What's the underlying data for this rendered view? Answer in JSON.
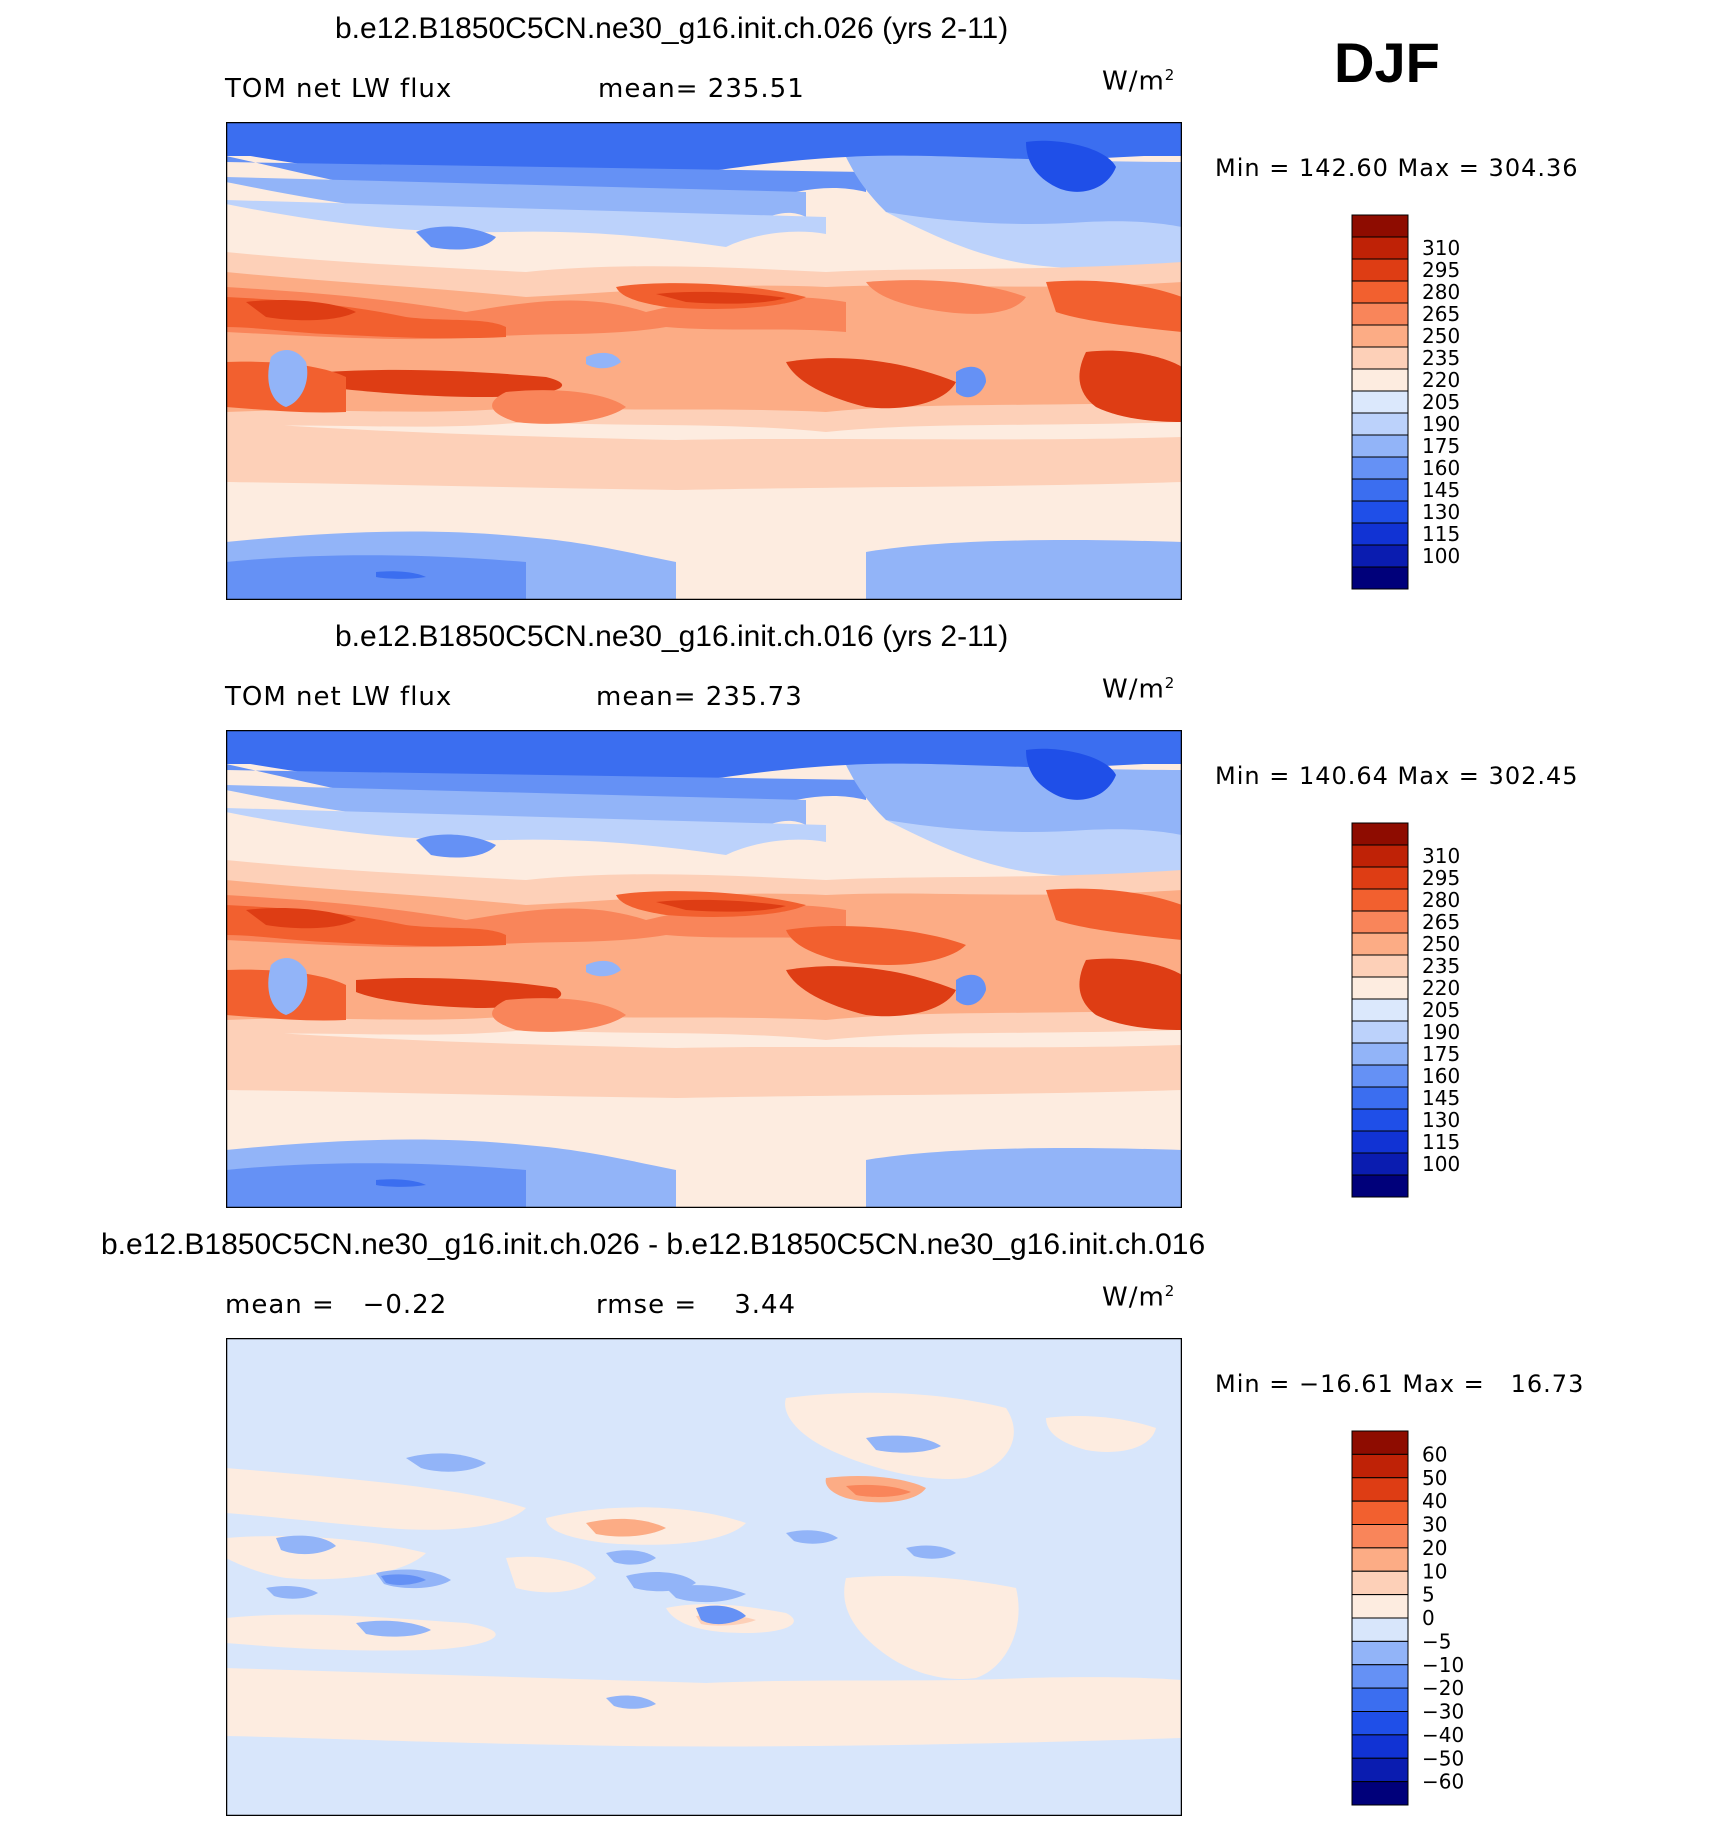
{
  "header": {
    "season": "DJF"
  },
  "colors": {
    "abs_scale": [
      "#00007a",
      "#0a1cb0",
      "#1133d4",
      "#1f4fe8",
      "#3b6ef0",
      "#6591f5",
      "#92b4f8",
      "#bcd2fb",
      "#dbe8fc",
      "#fdece0",
      "#fdd0b8",
      "#fcac85",
      "#f9855a",
      "#f2602f",
      "#de3d14",
      "#bf2206",
      "#8e0c00"
    ],
    "diff_scale": [
      "#00007a",
      "#0a1cb0",
      "#1133d4",
      "#1f4fe8",
      "#3b6ef0",
      "#6591f5",
      "#92b4f8",
      "#d8e6fb",
      "#fdece0",
      "#fdd0b8",
      "#fcac85",
      "#f9855a",
      "#f2602f",
      "#de3d14",
      "#bf2206",
      "#8e0c00"
    ]
  },
  "chart_data": [
    {
      "type": "heatmap",
      "title": "b.e12.B1850C5CN.ne30_g16.init.ch.026 (yrs 2-11)",
      "variable": "TOM net LW flux",
      "mean_label": "mean= 235.51",
      "units": "W/m",
      "units_exp": "2",
      "stats": "Min = 142.60 Max = 304.36",
      "min": 142.6,
      "max": 304.36,
      "mean": 235.51,
      "colorbar_levels": [
        "310",
        "295",
        "280",
        "265",
        "250",
        "235",
        "220",
        "205",
        "190",
        "175",
        "160",
        "145",
        "130",
        "115",
        "100"
      ]
    },
    {
      "type": "heatmap",
      "title": "b.e12.B1850C5CN.ne30_g16.init.ch.016 (yrs 2-11)",
      "variable": "TOM net LW flux",
      "mean_label": "mean= 235.73",
      "units": "W/m",
      "units_exp": "2",
      "stats": "Min = 140.64 Max = 302.45",
      "min": 140.64,
      "max": 302.45,
      "mean": 235.73,
      "colorbar_levels": [
        "310",
        "295",
        "280",
        "265",
        "250",
        "235",
        "220",
        "205",
        "190",
        "175",
        "160",
        "145",
        "130",
        "115",
        "100"
      ]
    },
    {
      "type": "heatmap",
      "title": "b.e12.B1850C5CN.ne30_g16.init.ch.026 - b.e12.B1850C5CN.ne30_g16.init.ch.016",
      "mean_label": "mean =   −0.22",
      "rmse_label": "rmse =    3.44",
      "units": "W/m",
      "units_exp": "2",
      "stats": "Min = −16.61 Max =   16.73",
      "min": -16.61,
      "max": 16.73,
      "mean": -0.22,
      "rmse": 3.44,
      "colorbar_levels": [
        "60",
        "50",
        "40",
        "30",
        "20",
        "10",
        "5",
        "0",
        "−5",
        "−10",
        "−20",
        "−30",
        "−40",
        "−50",
        "−60"
      ]
    }
  ]
}
